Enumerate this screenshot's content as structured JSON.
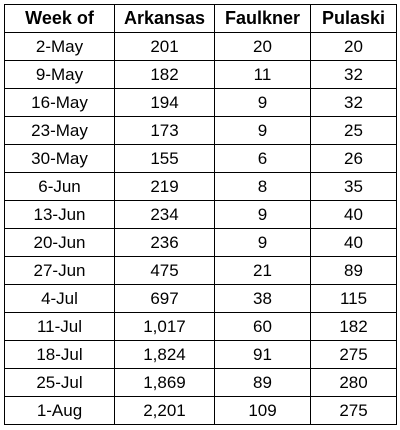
{
  "table": {
    "headers": [
      "Week of",
      "Arkansas",
      "Faulkner",
      "Pulaski"
    ],
    "rows": [
      [
        "2-May",
        "201",
        "20",
        "20"
      ],
      [
        "9-May",
        "182",
        "11",
        "32"
      ],
      [
        "16-May",
        "194",
        "9",
        "32"
      ],
      [
        "23-May",
        "173",
        "9",
        "25"
      ],
      [
        "30-May",
        "155",
        "6",
        "26"
      ],
      [
        "6-Jun",
        "219",
        "8",
        "35"
      ],
      [
        "13-Jun",
        "234",
        "9",
        "40"
      ],
      [
        "20-Jun",
        "236",
        "9",
        "40"
      ],
      [
        "27-Jun",
        "475",
        "21",
        "89"
      ],
      [
        "4-Jul",
        "697",
        "38",
        "115"
      ],
      [
        "11-Jul",
        "1,017",
        "60",
        "182"
      ],
      [
        "18-Jul",
        "1,824",
        "91",
        "275"
      ],
      [
        "25-Jul",
        "1,869",
        "89",
        "280"
      ],
      [
        "1-Aug",
        "2,201",
        "109",
        "275"
      ]
    ]
  }
}
